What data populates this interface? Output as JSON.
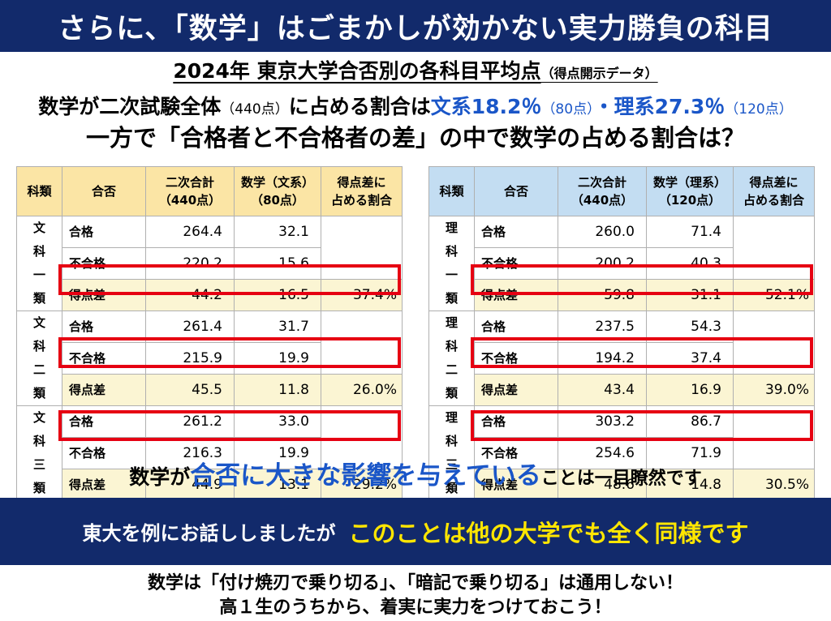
{
  "banner_top": "さらに、「数学」はごまかしが効かない実力勝負の科目",
  "subtitle": {
    "main": "2024年 東京大学合否別の各科目平均点",
    "note": "（得点開示データ）"
  },
  "line1": {
    "p1": "数学が二次試験全体",
    "p2": "（440点）",
    "p3": "に占める割合は",
    "p4": "文系18.2％",
    "p5": "（80点）",
    "p6": "・",
    "p7": "理系27.3％",
    "p8": "（120点）"
  },
  "line2": "一方で「合格者と不合格者の差」の中で数学の占める割合は？",
  "left_table": {
    "headers": {
      "cat": "科類",
      "result": "合否",
      "total_1": "二次合計",
      "total_2": "（440点）",
      "math_1": "数学（文系）",
      "math_2": "（80点）",
      "ratio_1": "得点差に",
      "ratio_2": "占める割合"
    },
    "groups": [
      {
        "cat": [
          "文",
          "科",
          "一",
          "類"
        ],
        "rows": [
          {
            "result": "合格",
            "total": "264.4",
            "math": "32.1",
            "ratio": ""
          },
          {
            "result": "不合格",
            "total": "220.2",
            "math": "15.6",
            "ratio": ""
          },
          {
            "result": "得点差",
            "total": "44.2",
            "math": "16.5",
            "ratio": "37.4%"
          }
        ]
      },
      {
        "cat": [
          "文",
          "科",
          "二",
          "類"
        ],
        "rows": [
          {
            "result": "合格",
            "total": "261.4",
            "math": "31.7",
            "ratio": ""
          },
          {
            "result": "不合格",
            "total": "215.9",
            "math": "19.9",
            "ratio": ""
          },
          {
            "result": "得点差",
            "total": "45.5",
            "math": "11.8",
            "ratio": "26.0%"
          }
        ]
      },
      {
        "cat": [
          "文",
          "科",
          "三",
          "類"
        ],
        "rows": [
          {
            "result": "合格",
            "total": "261.2",
            "math": "33.0",
            "ratio": ""
          },
          {
            "result": "不合格",
            "total": "216.3",
            "math": "19.9",
            "ratio": ""
          },
          {
            "result": "得点差",
            "total": "44.9",
            "math": "13.1",
            "ratio": "29.2%"
          }
        ]
      }
    ]
  },
  "right_table": {
    "headers": {
      "cat": "科類",
      "result": "合否",
      "total_1": "二次合計",
      "total_2": "（440点）",
      "math_1": "数学（理系）",
      "math_2": "（120点）",
      "ratio_1": "得点差に",
      "ratio_2": "占める割合"
    },
    "groups": [
      {
        "cat": [
          "理",
          "科",
          "一",
          "類"
        ],
        "rows": [
          {
            "result": "合格",
            "total": "260.0",
            "math": "71.4",
            "ratio": ""
          },
          {
            "result": "不合格",
            "total": "200.2",
            "math": "40.3",
            "ratio": ""
          },
          {
            "result": "得点差",
            "total": "59.8",
            "math": "31.1",
            "ratio": "52.1%"
          }
        ]
      },
      {
        "cat": [
          "理",
          "科",
          "二",
          "類"
        ],
        "rows": [
          {
            "result": "合格",
            "total": "237.5",
            "math": "54.3",
            "ratio": ""
          },
          {
            "result": "不合格",
            "total": "194.2",
            "math": "37.4",
            "ratio": ""
          },
          {
            "result": "得点差",
            "total": "43.4",
            "math": "16.9",
            "ratio": "39.0%"
          }
        ]
      },
      {
        "cat": [
          "理",
          "科",
          "三",
          "類"
        ],
        "rows": [
          {
            "result": "合格",
            "total": "303.2",
            "math": "86.7",
            "ratio": ""
          },
          {
            "result": "不合格",
            "total": "254.6",
            "math": "71.9",
            "ratio": ""
          },
          {
            "result": "得点差",
            "total": "48.6",
            "math": "14.8",
            "ratio": "30.5%"
          }
        ]
      }
    ]
  },
  "emphasis": {
    "p1": "数学が",
    "p2": "合否に大きな影響を与えている",
    "p3": "ことは一目瞭然です"
  },
  "banner_bottom": {
    "left": "東大を例にお話ししましたが",
    "right": "このことは他の大学でも全く同様です"
  },
  "closing": [
    "数学は「付け焼刃で乗り切る」、「暗記で乗り切る」は通用しない！",
    "高１生のうちから、着実に実力をつけておこう！"
  ],
  "colors": {
    "banner_bg": "#122a6b",
    "accent_blue": "#1a56c8",
    "highlight_yellow": "#ffe600",
    "left_header_bg": "#fbe5a5",
    "right_header_bg": "#c3ddf2",
    "diff_row_bg": "#fbf5d3",
    "red_frame": "#e60012"
  }
}
